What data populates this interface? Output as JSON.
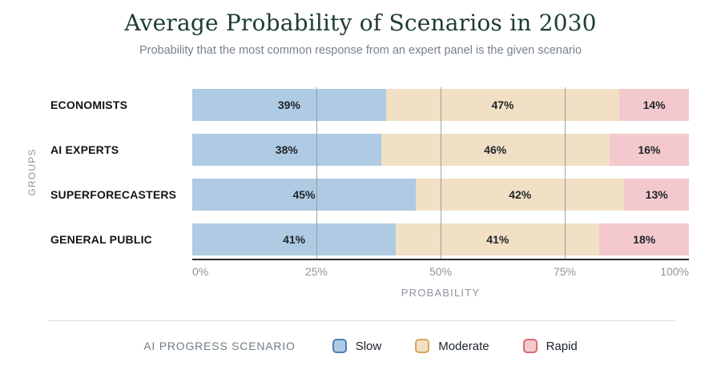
{
  "header": {
    "title": "Average Probability of Scenarios in 2030",
    "subtitle": "Probability that the most common response from an expert panel is the given scenario"
  },
  "chart_data": {
    "type": "bar",
    "orientation": "horizontal",
    "stacked": true,
    "title": "Average Probability of Scenarios in 2030",
    "subtitle": "Probability that the most common response from an expert panel is the given scenario",
    "categories": [
      "ECONOMISTS",
      "AI EXPERTS",
      "SUPERFORECASTERS",
      "GENERAL PUBLIC"
    ],
    "series": [
      {
        "name": "Slow",
        "values": [
          39,
          38,
          45,
          41
        ],
        "fill": "#aecbe3",
        "swatch_border": "#4d7ebb"
      },
      {
        "name": "Moderate",
        "values": [
          47,
          46,
          42,
          41
        ],
        "fill": "#f2e0c4",
        "swatch_border": "#d9a45c"
      },
      {
        "name": "Rapid",
        "values": [
          14,
          16,
          13,
          18
        ],
        "fill": "#f3c9cd",
        "swatch_border": "#d86a6f"
      }
    ],
    "value_suffix": "%",
    "xlabel": "PROBABILITY",
    "ylabel": "GROUPS",
    "xlim": [
      0,
      100
    ],
    "x_ticks": [
      {
        "label": "0%",
        "value": 0
      },
      {
        "label": "25%",
        "value": 25
      },
      {
        "label": "50%",
        "value": 50
      },
      {
        "label": "75%",
        "value": 75
      },
      {
        "label": "100%",
        "value": 100
      }
    ],
    "gridlines_at": [
      25,
      50,
      75
    ],
    "grid": true,
    "legend_title": "AI PROGRESS SCENARIO",
    "legend_position": "bottom"
  }
}
